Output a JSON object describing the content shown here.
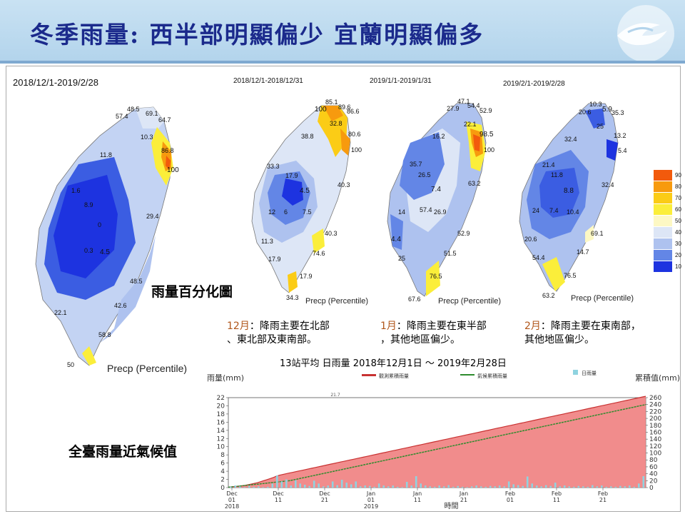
{
  "header": {
    "title": "冬季雨量: 西半部明顯偏少 宜蘭明顯偏多"
  },
  "maps": [
    {
      "period": "2018/12/1-2019/2/28",
      "caption": "Precp (Percentile)",
      "values": [
        "48.5",
        "57.4",
        "69.1",
        "64.7",
        "10.3",
        "86.8",
        "11.8",
        "100",
        "1.6",
        "8.9",
        "29.4",
        "0",
        "0.3",
        "4.5",
        "48.5",
        "42.6",
        "22.1",
        "58.8",
        "50"
      ]
    },
    {
      "period": "2018/12/1-2018/12/31",
      "caption": "Precp (Percentile)",
      "values": [
        "85.1",
        "89.6",
        "100",
        "86.6",
        "32.8",
        "80.6",
        "38.8",
        "100",
        "33.3",
        "17.9",
        "40.3",
        "4.5",
        "12",
        "6",
        "7.5",
        "40.3",
        "11.3",
        "74.6",
        "17.9",
        "17.9",
        "34.3"
      ]
    },
    {
      "period": "2019/1/1-2019/1/31",
      "caption": "Precp (Percentile)",
      "values": [
        "47.1",
        "54.4",
        "27.9",
        "52.9",
        "22.1",
        "98.5",
        "16.2",
        "100",
        "35.7",
        "26.5",
        "63.2",
        "7.4",
        "14",
        "57.4",
        "26.9",
        "52.9",
        "4.4",
        "51.5",
        "25",
        "76.5",
        "67.6"
      ]
    },
    {
      "period": "2019/2/1-2019/2/28",
      "caption": "Precp (Percentile)",
      "values": [
        "10.3",
        "20.6",
        "5.9",
        "35.3",
        "25",
        "13.2",
        "32.4",
        "5.4",
        "21.4",
        "11.8",
        "32.4",
        "8.8",
        "24",
        "7.4",
        "10.4",
        "69.1",
        "20.6",
        "14.7",
        "54.4",
        "76.5",
        "63.2"
      ]
    }
  ],
  "legend": {
    "levels": [
      "90",
      "80",
      "70",
      "60",
      "50",
      "40",
      "30",
      "20",
      "10"
    ],
    "colors": [
      "#f25a0c",
      "#f79a0e",
      "#fbcc16",
      "#fbee3a",
      "#fdf8c4",
      "#dde6f6",
      "#aec2ef",
      "#6386e6",
      "#1d33e0"
    ]
  },
  "labels": {
    "map_desc": "雨量百分化圖",
    "chart_desc": "全臺雨量近氣候值"
  },
  "notes": [
    {
      "month": "12月",
      "text1": "：降雨主要在北部",
      "text2": "、東北部及東南部。"
    },
    {
      "month": "1月",
      "text1": "：降雨主要在東半部",
      "text2": "，其他地區偏少。"
    },
    {
      "month": "2月",
      "text1": "：降雨主要在東南部，",
      "text2": "其他地區偏少。"
    }
  ],
  "chart_data": {
    "type": "bar",
    "title": "13站平均 日雨量 2018年12月1日 ～ 2019年2月28日",
    "ylabel_left": "雨量(mm)",
    "ylabel_right": "累積值(mm)",
    "xlabel": "時間",
    "legend": [
      "觀測累積雨量",
      "氣候累積雨量",
      "日雨量"
    ],
    "colors": {
      "observed_cum": "#f08080",
      "observed_cum_line": "#c83232",
      "climate_cum": "#2e8b2e",
      "daily": "#8fd3e0"
    },
    "ylim_left": [
      0,
      22
    ],
    "ylim_right": [
      0,
      260
    ],
    "yticks_left": [
      0,
      2,
      4,
      6,
      8,
      10,
      12,
      14,
      16,
      18,
      20,
      22
    ],
    "yticks_right": [
      0,
      20,
      40,
      60,
      80,
      100,
      120,
      140,
      160,
      180,
      200,
      220,
      240,
      260
    ],
    "xtick_labels": [
      [
        "Dec",
        "01",
        "2018"
      ],
      [
        "Dec",
        "11",
        ""
      ],
      [
        "Dec",
        "21",
        ""
      ],
      [
        "Jan",
        "01",
        "2019"
      ],
      [
        "Jan",
        "11",
        ""
      ],
      [
        "Jan",
        "21",
        ""
      ],
      [
        "Feb",
        "01",
        ""
      ],
      [
        "Feb",
        "11",
        ""
      ],
      [
        "Feb",
        "21",
        ""
      ]
    ],
    "annotation": "21.7",
    "daily_rain": [
      0.2,
      0.5,
      0.3,
      0.1,
      0.4,
      0.2,
      0.3,
      0.1,
      0.2,
      1.0,
      3.0,
      1.5,
      2.0,
      0.5,
      1.8,
      1.0,
      0.7,
      0.4,
      1.7,
      1.0,
      0.3,
      0.5,
      1.5,
      0.6,
      1.9,
      1.2,
      0.8,
      1.5,
      0.3,
      0.5,
      0.4,
      0.2,
      1.0,
      0.5,
      0.3,
      0.5,
      0.2,
      0.1,
      1.4,
      0.5,
      2.8,
      1.0,
      0.5,
      0.3,
      0.2,
      0.5,
      0.3,
      0.6,
      0.2,
      0.4,
      0.2,
      0.1,
      0.3,
      0.5,
      0.3,
      0.2,
      0.4,
      0.3,
      0.5,
      0.3,
      1.5,
      0.8,
      0.6,
      0.4,
      2.7,
      1.0,
      0.5,
      0.3,
      0.6,
      0.4,
      1.2,
      0.3,
      0.5,
      0.3,
      0.2,
      0.4,
      0.3,
      0.2,
      0.6,
      0.3,
      0.5,
      0.2,
      0.3,
      0.2,
      0.4,
      0.3,
      0.5,
      0.2,
      1.0,
      2.8
    ],
    "observed_cumulative": [
      1,
      2,
      3,
      4,
      5,
      6,
      8,
      10,
      12,
      14,
      17,
      20,
      23,
      26,
      29,
      33,
      36,
      38,
      40,
      42,
      44,
      46,
      48,
      50,
      52,
      54,
      56,
      58,
      60,
      62,
      64,
      66,
      68,
      70,
      72,
      74,
      76,
      78,
      80,
      82,
      84,
      86,
      88,
      90,
      92,
      94,
      96,
      98,
      100,
      102,
      104,
      106,
      108,
      110,
      112,
      114,
      116,
      118,
      120,
      122,
      124,
      126,
      128,
      130,
      132,
      134,
      136,
      138,
      140,
      142,
      144,
      146,
      148,
      150,
      152,
      154,
      156,
      158,
      160,
      162,
      164,
      166,
      168,
      170,
      172,
      174,
      176,
      178,
      180,
      182,
      184,
      186,
      188,
      190,
      192,
      194,
      196,
      198,
      200,
      202,
      204,
      206,
      208,
      210,
      212,
      214,
      216,
      218,
      220,
      222,
      224,
      226,
      228,
      230,
      232,
      234,
      236,
      238,
      240,
      242,
      244,
      246,
      248,
      250,
      252,
      254,
      256,
      258,
      260,
      262,
      264
    ],
    "climate_cumulative": [
      1,
      2,
      3,
      4,
      5,
      6,
      7,
      8,
      9,
      10,
      11,
      12,
      13,
      14,
      15,
      16,
      17,
      18,
      19,
      20,
      22,
      24,
      26,
      28,
      30,
      32,
      34,
      36,
      38,
      40,
      42,
      44,
      46,
      48,
      50,
      52,
      54,
      56,
      58,
      60,
      62,
      64,
      66,
      68,
      70,
      72,
      74,
      76,
      78,
      80,
      82,
      84,
      86,
      88,
      90,
      92,
      94,
      96,
      98,
      100,
      102,
      104,
      106,
      108,
      110,
      112,
      114,
      116,
      118,
      120,
      122,
      124,
      126,
      128,
      130,
      132,
      134,
      136,
      138,
      140,
      142,
      144,
      146,
      148,
      150,
      152,
      154,
      156,
      158,
      160,
      162,
      164,
      166,
      168,
      170,
      172,
      174,
      176,
      178,
      180,
      182,
      184,
      186,
      188,
      190,
      192,
      194,
      196,
      198,
      200,
      202,
      204,
      206,
      208,
      210,
      212,
      214,
      216,
      218,
      220,
      222,
      224,
      226,
      228,
      230,
      232,
      234,
      236,
      238,
      240
    ]
  }
}
